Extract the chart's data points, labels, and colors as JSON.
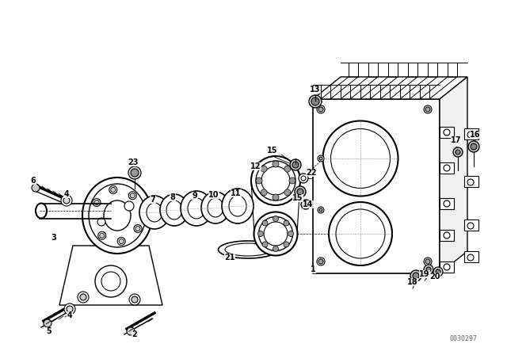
{
  "background_color": "#ffffff",
  "line_color": "#000000",
  "watermark": "0030297",
  "fig_width": 6.4,
  "fig_height": 4.48,
  "dpi": 100
}
